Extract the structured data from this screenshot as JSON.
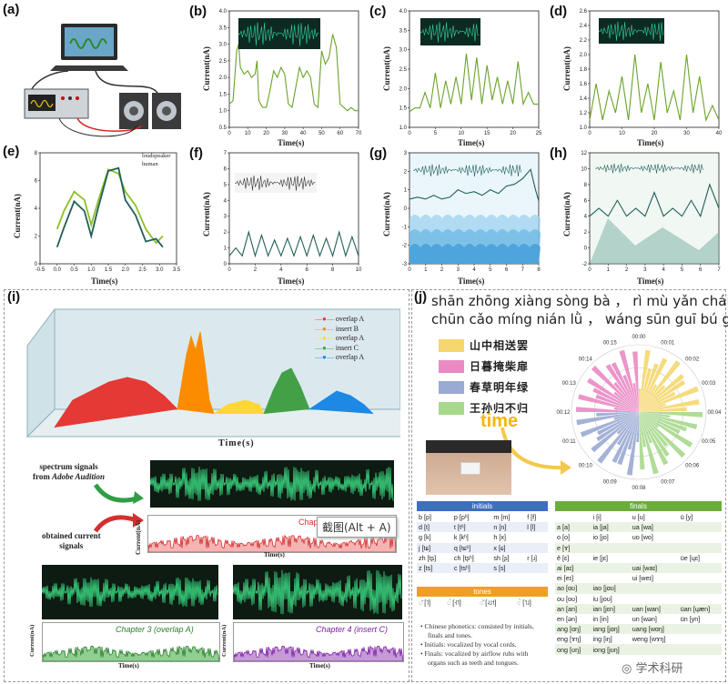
{
  "panels": {
    "a": "(a)",
    "b": "(b)",
    "c": "(c)",
    "d": "(d)",
    "e": "(e)",
    "f": "(f)",
    "g": "(g)",
    "h": "(h)",
    "i": "(i)",
    "j": "(j)"
  },
  "axis": {
    "current_label": "Current(nA)",
    "time_label": "Time(s)",
    "times_label": "Time(s)"
  },
  "chart_data": [
    {
      "panel": "b",
      "type": "line",
      "xlabel": "Time(s)",
      "ylabel": "Current(nA)",
      "xlim": [
        0,
        70
      ],
      "ylim": [
        0.5,
        4.0
      ],
      "xticks": [
        "0",
        "10",
        "20",
        "30",
        "40",
        "50",
        "60",
        "70"
      ],
      "yticks": [
        "0.5",
        "1.0",
        "1.5",
        "2.0",
        "2.5",
        "3.0",
        "3.5",
        "4.0"
      ],
      "x": [
        0,
        2,
        4,
        5,
        6,
        8,
        10,
        12,
        14,
        15,
        16,
        18,
        20,
        22,
        24,
        26,
        28,
        30,
        32,
        34,
        36,
        38,
        40,
        42,
        44,
        46,
        48,
        50,
        52,
        54,
        56,
        58,
        60,
        62,
        64,
        66,
        68,
        70
      ],
      "y": [
        1.2,
        1.3,
        2.8,
        3.0,
        2.3,
        2.1,
        2.2,
        2.0,
        2.1,
        2.5,
        1.3,
        1.1,
        1.1,
        1.6,
        2.2,
        2.0,
        2.3,
        2.1,
        1.2,
        1.1,
        1.7,
        2.3,
        2.0,
        2.2,
        2.0,
        1.2,
        1.1,
        2.8,
        2.4,
        2.6,
        3.3,
        2.9,
        1.2,
        1.1,
        1.0,
        1.1,
        1.0,
        1.0
      ]
    },
    {
      "panel": "c",
      "type": "line",
      "xlabel": "Time(s)",
      "ylabel": "Current(nA)",
      "xlim": [
        0,
        25
      ],
      "ylim": [
        1.0,
        4.0
      ],
      "xticks": [
        "0",
        "5",
        "10",
        "15",
        "20",
        "25"
      ],
      "yticks": [
        "1.0",
        "1.5",
        "2.0",
        "2.5",
        "3.0",
        "3.5",
        "4.0"
      ],
      "x": [
        0,
        1,
        2,
        3,
        4,
        5,
        6,
        7,
        8,
        9,
        10,
        11,
        12,
        13,
        14,
        15,
        16,
        17,
        18,
        19,
        20,
        21,
        22,
        23,
        24,
        25
      ],
      "y": [
        1.4,
        1.5,
        1.5,
        1.9,
        1.5,
        2.4,
        1.5,
        2.2,
        1.6,
        2.3,
        1.6,
        2.9,
        1.7,
        2.8,
        1.6,
        2.6,
        1.7,
        2.3,
        1.6,
        2.2,
        1.6,
        2.7,
        1.6,
        1.9,
        1.6,
        1.6
      ]
    },
    {
      "panel": "d",
      "type": "line",
      "xlabel": "Time(s)",
      "ylabel": "Current(nA)",
      "xlim": [
        0,
        40
      ],
      "ylim": [
        1.0,
        2.6
      ],
      "xticks": [
        "0",
        "10",
        "20",
        "30",
        "40"
      ],
      "yticks": [
        "1.0",
        "1.2",
        "1.4",
        "1.6",
        "1.8",
        "2.0",
        "2.2",
        "2.4",
        "2.6"
      ],
      "x": [
        0,
        2,
        4,
        6,
        8,
        10,
        12,
        14,
        16,
        18,
        20,
        22,
        24,
        26,
        28,
        30,
        32,
        34,
        36,
        38,
        40
      ],
      "y": [
        1.1,
        1.6,
        1.1,
        1.5,
        1.2,
        1.7,
        1.1,
        2.0,
        1.2,
        1.6,
        1.1,
        1.9,
        1.2,
        1.5,
        1.1,
        2.0,
        1.2,
        1.7,
        1.1,
        1.3,
        1.1
      ]
    },
    {
      "panel": "e",
      "type": "line",
      "xlabel": "Time(s)",
      "ylabel": "Current(nA)",
      "xlim": [
        -0.5,
        3.5
      ],
      "ylim": [
        0,
        8
      ],
      "xticks": [
        "-0.5",
        "0.0",
        "0.5",
        "1.0",
        "1.5",
        "2.0",
        "2.5",
        "3.0",
        "3.5"
      ],
      "yticks": [
        "0",
        "2",
        "4",
        "6",
        "8"
      ],
      "series": [
        {
          "name": "loudspeaker",
          "x": [
            0,
            0.2,
            0.5,
            0.8,
            1.0,
            1.2,
            1.5,
            1.8,
            2.0,
            2.3,
            2.6,
            2.9,
            3.1
          ],
          "y": [
            2.5,
            3.8,
            5.2,
            4.6,
            2.8,
            4.5,
            6.8,
            6.5,
            5.2,
            4.2,
            2.5,
            1.5,
            2.0
          ]
        },
        {
          "name": "human",
          "x": [
            0,
            0.2,
            0.5,
            0.8,
            1.0,
            1.2,
            1.5,
            1.8,
            2.0,
            2.3,
            2.6,
            2.9,
            3.1
          ],
          "y": [
            1.2,
            2.6,
            4.5,
            3.8,
            2.0,
            4.0,
            6.7,
            6.9,
            4.6,
            3.5,
            1.6,
            1.8,
            1.2
          ]
        }
      ]
    },
    {
      "panel": "f",
      "type": "line",
      "xlabel": "Time(s)",
      "ylabel": "Current(nA)",
      "xlim": [
        0,
        10
      ],
      "ylim": [
        0,
        7
      ],
      "xticks": [
        "0",
        "2",
        "4",
        "6",
        "8",
        "10"
      ],
      "yticks": [
        "0",
        "1",
        "2",
        "3",
        "4",
        "5",
        "6",
        "7"
      ],
      "x": [
        0,
        0.5,
        1,
        1.5,
        2,
        2.5,
        3,
        3.5,
        4,
        4.5,
        5,
        5.5,
        6,
        6.5,
        7,
        7.5,
        8,
        8.5,
        9,
        9.5,
        10
      ],
      "y": [
        0.5,
        1.0,
        0.5,
        2.0,
        0.5,
        1.8,
        0.5,
        1.5,
        0.5,
        1.6,
        0.5,
        1.7,
        0.5,
        1.8,
        0.5,
        1.6,
        0.5,
        2.0,
        0.5,
        1.7,
        0.5
      ]
    },
    {
      "panel": "g",
      "type": "line",
      "xlabel": "Time(s)",
      "ylabel": "Current(nA)",
      "xlim": [
        0,
        8
      ],
      "ylim": [
        -3,
        3
      ],
      "xticks": [
        "0",
        "1",
        "2",
        "3",
        "4",
        "5",
        "6",
        "7",
        "8"
      ],
      "yticks": [
        "-3",
        "-2",
        "-1",
        "0",
        "1",
        "2",
        "3"
      ],
      "x": [
        0,
        0.5,
        1,
        1.5,
        2,
        2.5,
        3,
        3.5,
        4,
        4.5,
        5,
        5.5,
        6,
        6.5,
        7,
        7.5,
        7.8,
        8
      ],
      "y": [
        0.5,
        0.6,
        0.5,
        0.7,
        0.5,
        0.6,
        1.0,
        0.8,
        0.9,
        0.7,
        1.0,
        0.8,
        1.2,
        1.3,
        1.6,
        2.1,
        1.0,
        0.4
      ]
    },
    {
      "panel": "h",
      "type": "line",
      "xlabel": "Time(s)",
      "ylabel": "Current(nA)",
      "xlim": [
        0,
        7
      ],
      "ylim": [
        -2,
        12
      ],
      "xticks": [
        "0",
        "1",
        "2",
        "3",
        "4",
        "5",
        "6",
        "7"
      ],
      "yticks": [
        "-2",
        "0",
        "2",
        "4",
        "6",
        "8",
        "10",
        "12"
      ],
      "x": [
        0,
        0.5,
        1,
        1.5,
        2,
        2.5,
        3,
        3.5,
        4,
        4.5,
        5,
        5.5,
        6,
        6.5,
        7
      ],
      "y": [
        4,
        5,
        4,
        6,
        4,
        5,
        4,
        7,
        4,
        5,
        4,
        6,
        4,
        8,
        5
      ]
    }
  ],
  "panel_e_legend": {
    "loudspeaker": "loudspeaker",
    "human": "human"
  },
  "panel_i": {
    "legend": [
      "overlap A",
      "insert B",
      "overlap A",
      "insert C",
      "overlap A"
    ],
    "legend_colors": [
      "#e53935",
      "#fb8c00",
      "#fdd835",
      "#43a047",
      "#1e88e5"
    ],
    "spectrum_label_1": "spectrum signals",
    "spectrum_label_2": "from",
    "spectrum_label_app": "Adobe Audition",
    "obtained_label_1": "obtained current",
    "obtained_label_2": "signals",
    "chapter_partial": "Chapt",
    "tooltip": "截图(Alt + A)",
    "chapter3": "Chapter 3 (overlap A)",
    "chapter4": "Chapter 4 (insert C)"
  },
  "panel_j": {
    "pinyin_line1": "shān zhōng xiàng sòng bà ， rì mù yǎn chái fēi .",
    "pinyin_line2": "chūn cǎo míng nián lǜ ， wáng sūn guī bú guī ?",
    "poem_lines": [
      "山中相送罢",
      "日暮掩柴扉",
      "春草明年绿",
      "王孙归不归"
    ],
    "poem_colors": [
      "#f5d76e",
      "#e98ac4",
      "#9aaad3",
      "#a7d88c"
    ],
    "time_word": "time",
    "clock_labels": [
      "00:00",
      "00:01",
      "00:02",
      "00:03",
      "00:04",
      "00:05",
      "00:06",
      "00:07",
      "00:08",
      "00:09",
      "00:10",
      "00:11",
      "00:12",
      "00:13",
      "00:14",
      "00:15"
    ],
    "initials_title": "initials",
    "initials_rows": [
      [
        "b [p]",
        "p [pʰ]",
        "m [m]",
        "f [f]"
      ],
      [
        "d [t]",
        "t [tʰ]",
        "n [n]",
        "l [l]"
      ],
      [
        "g [k]",
        "k [kʰ]",
        "h [x]",
        ""
      ],
      [
        "j [tɕ]",
        "q [tɕʰ]",
        "x [ɕ]",
        ""
      ],
      [
        "zh [tʂ]",
        "ch [tʂʰ]",
        "sh [ʂ]",
        "r [ɹ]"
      ],
      [
        "z [ts]",
        "c [tsʰ]",
        "s [s]",
        ""
      ]
    ],
    "tones_title": "tones",
    "tones_row": [
      "◌̄ [˥]",
      "◌́ [˧˥]",
      "◌̌ [˨˩˦]",
      "◌̀ [˥˩]"
    ],
    "notes": [
      "Chinese phonetics: consisted by initials,",
      "finals and tones.",
      "Initials: vocalized by vocal cords.",
      "Finals: vocalized by airflow rubs with",
      "organs such as teeth and tongues."
    ],
    "finals_title": "finals",
    "finals_rows": [
      [
        "",
        "i [i]",
        "u [u]",
        "ü [y]"
      ],
      [
        "a [a]",
        "ia [ja]",
        "ua [wa]",
        ""
      ],
      [
        "o [o]",
        "io [jo]",
        "uo [wo]",
        ""
      ],
      [
        "e [ɤ]",
        "",
        "",
        ""
      ],
      [
        "ê [ɛ]",
        "ie [jɛ]",
        "",
        "üe [ɥɛ]"
      ],
      [
        "ai [aɪ]",
        "",
        "uai [waɪ]",
        ""
      ],
      [
        "ei [eɪ]",
        "",
        "ui [weɪ]",
        ""
      ],
      [
        "ao [ɑʊ]",
        "iao [jɑʊ]",
        "",
        ""
      ],
      [
        "ou [oʊ]",
        "iu [joʊ]",
        "",
        ""
      ],
      [
        "an [an]",
        "ian [jɛn]",
        "uan [wan]",
        "üan [ɥæn]"
      ],
      [
        "en [ən]",
        "in [in]",
        "un [wən]",
        "ün [yn]"
      ],
      [
        "ang [ɑŋ]",
        "iang [jɑŋ]",
        "uang [wɑŋ]",
        ""
      ],
      [
        "eng [ɤŋ]",
        "ing [iŋ]",
        "weng [wɤŋ]",
        ""
      ],
      [
        "ong [ʊŋ]",
        "iong [jʊŋ]",
        "",
        ""
      ]
    ],
    "watermark": "学术科研"
  },
  "colors": {
    "green_signal": "#6aa32a",
    "teal_signal": "#1f5f57",
    "initials_blue": "#3d6fbf",
    "finals_green": "#6aad3c",
    "tones_orange": "#f0a020"
  }
}
